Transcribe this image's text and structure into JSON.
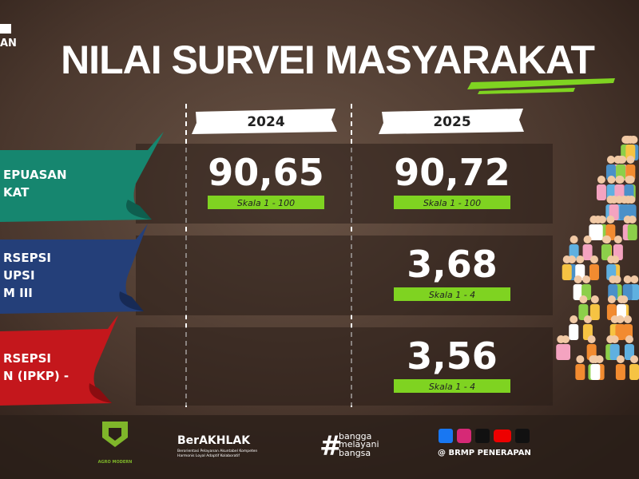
{
  "header": {
    "logo_text": "AN",
    "title": "NILAI SURVEI MASYARAKAT"
  },
  "table": {
    "columns": [
      "2024",
      "2025"
    ],
    "rows": [
      {
        "label": [
          "EPUASAN",
          "KAT"
        ],
        "y2024": {
          "value": "90,65",
          "scale": "Skala 1 - 100"
        },
        "y2025": {
          "value": "90,72",
          "scale": "Skala 1 - 100"
        }
      },
      {
        "label": [
          "RSEPSI",
          "UPSI",
          "M III"
        ],
        "y2025": {
          "value": "3,68",
          "scale": "Skala 1 - 4"
        }
      },
      {
        "label": [
          "RSEPSI",
          "N (IPKP) -"
        ],
        "y2025": {
          "value": "3,56",
          "scale": "Skala 1 - 4"
        }
      }
    ]
  },
  "footer": {
    "agro": "AGRO MODERN",
    "berakhlak": "BerAKHLAK",
    "berakhlak_sub": [
      "Berorientasi Pelayanan Akuntabel Kompeten",
      "Harmonis Loyal Adaptif Kolaboratif"
    ],
    "hash": "#",
    "tagline": [
      "bangga",
      "melayani",
      "bangsa"
    ],
    "social": "@ BRMP PENERAPAN"
  }
}
